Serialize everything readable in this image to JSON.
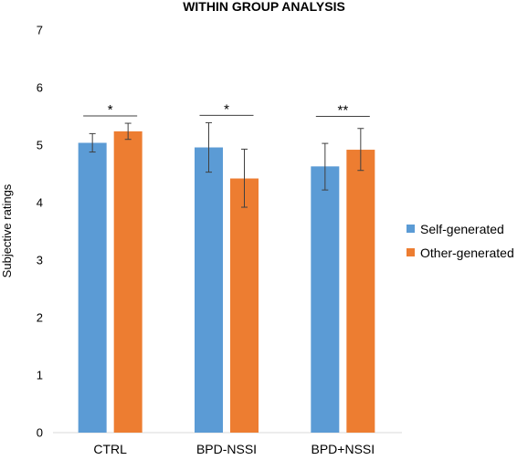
{
  "chart_data": {
    "type": "bar",
    "title": "WITHIN GROUP ANALYSIS",
    "xlabel": "",
    "ylabel": "Subjective ratings",
    "ylim": [
      0,
      7
    ],
    "yticks": [
      0,
      1,
      2,
      3,
      4,
      5,
      6,
      7
    ],
    "grid": false,
    "legend_position": "right",
    "categories": [
      "CTRL",
      "BPD-NSSI",
      "BPD+NSSI"
    ],
    "series": [
      {
        "name": "Self-generated",
        "color": "#5B9BD5",
        "values": [
          5.04,
          4.96,
          4.63
        ],
        "error_low": [
          4.88,
          4.53,
          4.22
        ],
        "error_high": [
          5.2,
          5.39,
          5.03
        ]
      },
      {
        "name": "Other-generated",
        "color": "#ED7D31",
        "values": [
          5.24,
          4.42,
          4.92
        ],
        "error_low": [
          5.1,
          3.92,
          4.56
        ],
        "error_high": [
          5.38,
          4.93,
          5.29
        ]
      }
    ],
    "significance": [
      {
        "category": "CTRL",
        "label": "*"
      },
      {
        "category": "BPD-NSSI",
        "label": "*"
      },
      {
        "category": "BPD+NSSI",
        "label": "**"
      }
    ]
  }
}
